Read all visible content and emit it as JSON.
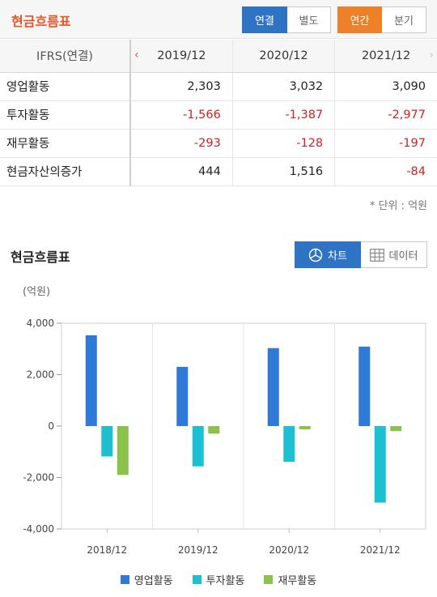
{
  "header": {
    "title": "현금흐름표",
    "scope_buttons": [
      "연결",
      "별도"
    ],
    "period_buttons": [
      "연간",
      "분기"
    ]
  },
  "table": {
    "header_label": "IFRS(연결)",
    "periods": [
      "2019/12",
      "2020/12",
      "2021/12"
    ],
    "rows": [
      {
        "label": "영업활동",
        "values": [
          "2,303",
          "3,032",
          "3,090"
        ]
      },
      {
        "label": "투자활동",
        "values": [
          "-1,566",
          "-1,387",
          "-2,977"
        ]
      },
      {
        "label": "재무활동",
        "values": [
          "-293",
          "-128",
          "-197"
        ]
      },
      {
        "label": "현금자산의증가",
        "values": [
          "444",
          "1,516",
          "-84"
        ]
      }
    ],
    "unit_note": "* 단위 : 억원"
  },
  "chart_section": {
    "title": "현금흐름표",
    "view_buttons": {
      "chart": "차트",
      "data": "데이터"
    }
  },
  "chart_data": {
    "type": "bar",
    "ylabel": "(억원)",
    "ylim": [
      -4000,
      4000
    ],
    "yticks": [
      4000,
      2000,
      0,
      -2000,
      -4000
    ],
    "ytick_labels": [
      "4,000",
      "2,000",
      "0",
      "-2,000",
      "-4,000"
    ],
    "grid": "vertical between categories",
    "legend_position": "bottom",
    "categories": [
      "2018/12",
      "2019/12",
      "2020/12",
      "2021/12"
    ],
    "series": [
      {
        "name": "영업활동",
        "color": "#2f7ad9",
        "values": [
          3530,
          2303,
          3032,
          3090
        ]
      },
      {
        "name": "투자활동",
        "color": "#1dc0d0",
        "values": [
          -1180,
          -1566,
          -1387,
          -2977
        ]
      },
      {
        "name": "재무활동",
        "color": "#8bc34a",
        "values": [
          -1900,
          -293,
          -128,
          -197
        ]
      }
    ]
  }
}
